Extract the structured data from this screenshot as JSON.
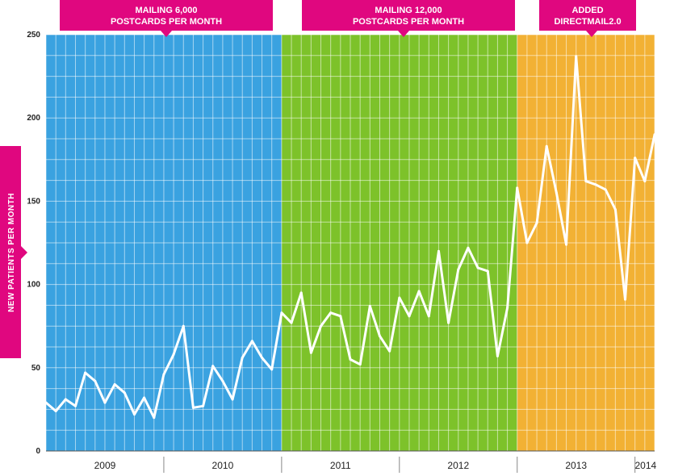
{
  "chart_data": {
    "type": "line",
    "title": "",
    "xlabel": "",
    "ylabel": "NEW PATIENTS PER MONTH",
    "ylim": [
      0,
      250
    ],
    "yticks": [
      0,
      50,
      100,
      150,
      200,
      250
    ],
    "grid": true,
    "years": [
      "2009",
      "2010",
      "2011",
      "2012",
      "2013",
      "2014"
    ],
    "callouts": [
      {
        "line1": "MAILING 6,000",
        "line2": "POSTCARDS PER MONTH"
      },
      {
        "line1": "MAILING 12,000",
        "line2": "POSTCARDS PER MONTH"
      },
      {
        "line1": "ADDED",
        "line2": "DIRECTMAIL2.0"
      }
    ],
    "phases": [
      {
        "name": "Mailing 6,000 postcards per month",
        "start_month": 0,
        "end_month": 24,
        "color": "#3aa2e0"
      },
      {
        "name": "Mailing 12,000 postcards per month",
        "start_month": 24,
        "end_month": 48,
        "color": "#7dc22a"
      },
      {
        "name": "Added DirectMail2.0",
        "start_month": 48,
        "end_month": 62,
        "color": "#f2b134"
      }
    ],
    "series": [
      {
        "name": "New patients per month",
        "color": "#ffffff",
        "values": [
          29,
          24,
          31,
          27,
          47,
          42,
          29,
          40,
          35,
          22,
          32,
          20,
          46,
          58,
          75,
          26,
          27,
          51,
          42,
          31,
          56,
          66,
          56,
          49,
          83,
          77,
          95,
          59,
          75,
          83,
          81,
          55,
          52,
          87,
          69,
          60,
          92,
          81,
          96,
          81,
          120,
          77,
          109,
          122,
          110,
          108,
          57,
          86,
          158,
          125,
          137,
          183,
          155,
          124,
          237,
          162,
          160,
          157,
          145,
          91,
          176,
          162,
          190
        ]
      }
    ]
  },
  "colors": {
    "accent": "#e0077f",
    "blue": "#3aa2e0",
    "green": "#7dc22a",
    "orange": "#f2b134"
  }
}
